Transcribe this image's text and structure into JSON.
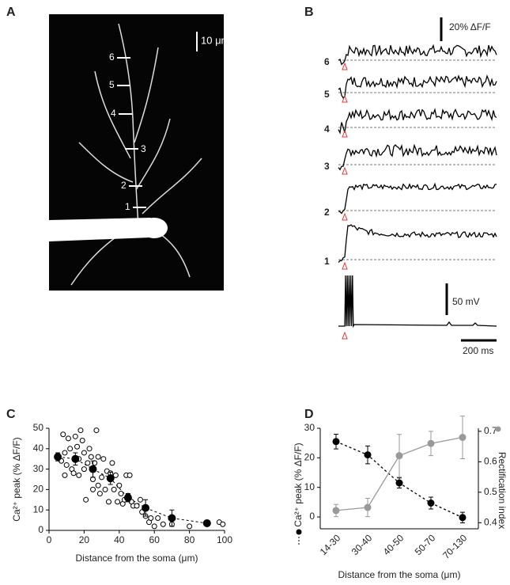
{
  "panel_labels": [
    "A",
    "B",
    "C",
    "D"
  ],
  "image": {
    "scale_label": "10 μm",
    "markers": [
      "6",
      "5",
      "4",
      "3",
      "2",
      "1"
    ]
  },
  "traces": {
    "labels": [
      "6",
      "5",
      "4",
      "3",
      "2",
      "1"
    ],
    "scale_dff": "20% ΔF/F",
    "scale_mv": "50 mV",
    "scale_ms": "200 ms"
  },
  "chart_data": [
    {
      "type": "scatter",
      "xlabel": "Distance from the soma (μm)",
      "ylabel": "Ca²⁺ peak (% ΔF/F)",
      "xlim": [
        0,
        100
      ],
      "xticks": [
        0,
        20,
        40,
        60,
        80,
        100
      ],
      "ylim": [
        0,
        50
      ],
      "yticks": [
        0,
        10,
        20,
        30,
        40,
        50
      ],
      "series": [
        {
          "marker": "open",
          "color": "#000000",
          "x": [
            5,
            7,
            8,
            9,
            9,
            10,
            11,
            12,
            13,
            14,
            15,
            16,
            17,
            17,
            18,
            19,
            20,
            20,
            21,
            22,
            23,
            24,
            25,
            25,
            26,
            27,
            28,
            28,
            29,
            30,
            31,
            32,
            33,
            34,
            35,
            36,
            37,
            38,
            39,
            40,
            41,
            42,
            43,
            44,
            45,
            46,
            47,
            48,
            50,
            52,
            53,
            55,
            57,
            58,
            60,
            62,
            65,
            70,
            80,
            97,
            99
          ],
          "values": [
            36,
            34,
            47,
            38,
            27,
            32,
            45,
            40,
            30,
            28,
            46,
            41,
            27,
            35,
            49,
            44,
            38,
            30,
            15,
            33,
            40,
            36,
            25,
            20,
            33,
            49,
            36,
            22,
            18,
            26,
            35,
            20,
            29,
            14,
            28,
            33,
            20,
            27,
            14,
            22,
            18,
            13,
            15,
            27,
            17,
            27,
            14,
            12,
            12,
            15,
            9,
            7,
            4,
            6,
            2,
            6,
            3,
            3,
            2,
            4,
            3
          ]
        },
        {
          "marker": "filled",
          "color": "#000000",
          "line": "dashed",
          "x": [
            5,
            15,
            25,
            35,
            45,
            55,
            70,
            90
          ],
          "values": [
            36,
            35,
            30,
            25.5,
            16,
            11,
            6,
            3.5
          ],
          "errors": [
            2,
            3,
            4,
            3,
            2,
            4,
            4,
            0.5
          ]
        }
      ]
    },
    {
      "type": "line",
      "xlabel": "Distance from the soma (μm)",
      "ylabel": "Ca²⁺ peak (% ΔF/F)",
      "y2label": "Rectification index",
      "categories": [
        "14-30",
        "30-40",
        "40-50",
        "50-70",
        "70-130"
      ],
      "ylim": [
        -4,
        30
      ],
      "yticks": [
        0,
        10,
        20,
        30
      ],
      "y2lim": [
        0.38,
        0.71
      ],
      "y2ticks": [
        0.4,
        0.5,
        0.6,
        0.7
      ],
      "series": [
        {
          "color": "#000000",
          "line": "dashed",
          "values": [
            25.5,
            21,
            11.5,
            4.7,
            -0.2
          ],
          "errors": [
            2.5,
            3,
            1.7,
            2,
            1.8
          ]
        },
        {
          "color": "#999999",
          "line": "solid",
          "axis": "y2",
          "values": [
            0.44,
            0.45,
            0.62,
            0.66,
            0.68
          ],
          "errors": [
            0.02,
            0.03,
            0.07,
            0.04,
            0.07
          ]
        }
      ]
    }
  ]
}
